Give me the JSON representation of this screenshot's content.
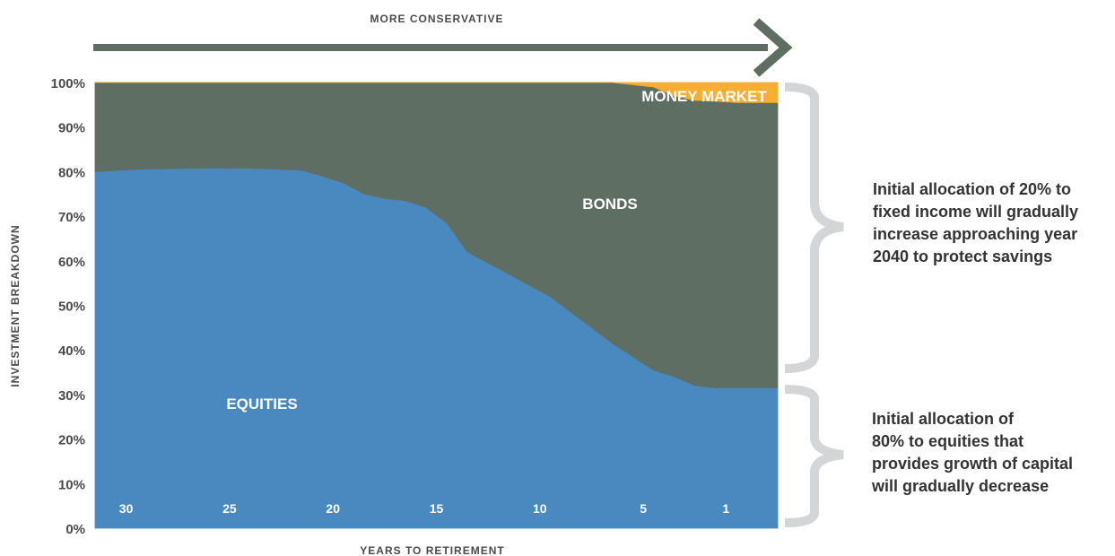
{
  "chart_data": {
    "type": "area",
    "stacked": true,
    "header": "MORE CONSERVATIVE",
    "xlabel": "YEARS TO RETIREMENT",
    "ylabel": "INVESTMENT BREAKDOWN",
    "ylim": [
      0,
      100
    ],
    "yticks": [
      "0%",
      "10%",
      "20%",
      "30%",
      "40%",
      "50%",
      "60%",
      "70%",
      "80%",
      "90%",
      "100%"
    ],
    "xtick_labels": [
      {
        "years": 30,
        "label": "30"
      },
      {
        "years": 25,
        "label": "25"
      },
      {
        "years": 20,
        "label": "20"
      },
      {
        "years": 15,
        "label": "15"
      },
      {
        "years": 10,
        "label": "10"
      },
      {
        "years": 5,
        "label": "5"
      },
      {
        "years": 1,
        "label": "1"
      }
    ],
    "x": [
      31.5,
      29.5,
      27.5,
      25.5,
      23.5,
      21.5,
      20.5,
      19.5,
      18.5,
      17.5,
      16.5,
      15.5,
      14.5,
      13.5,
      12.5,
      11.5,
      10.5,
      9.5,
      8.5,
      7.5,
      6.5,
      5.5,
      4.5,
      3.5,
      2.5,
      1.5,
      0.5,
      -0.5,
      -1.5
    ],
    "series": [
      {
        "name": "EQUITIES",
        "color": "#4a89bf",
        "values": [
          80,
          80.5,
          80.7,
          80.8,
          80.7,
          80.3,
          79,
          77.5,
          75,
          74,
          73.5,
          72,
          68.5,
          62,
          59.5,
          57,
          54.5,
          52,
          48.5,
          45,
          41.5,
          38.5,
          35.5,
          34,
          32,
          31.5,
          31.5,
          31.5,
          31.5
        ]
      },
      {
        "name": "BONDS",
        "color": "#5f6e62",
        "values": [
          20,
          19.5,
          19.3,
          19.2,
          19.3,
          19.7,
          21,
          22.5,
          25,
          26,
          26.5,
          28,
          31.5,
          38,
          40.5,
          43,
          45.5,
          48,
          51.5,
          55,
          58.5,
          61,
          63.5,
          63,
          64,
          64.3,
          64,
          64,
          64
        ]
      },
      {
        "name": "MONEY MARKET",
        "color": "#f8ad33",
        "values": [
          0,
          0,
          0,
          0,
          0,
          0,
          0,
          0,
          0,
          0,
          0,
          0,
          0,
          0,
          0,
          0,
          0,
          0,
          0,
          0,
          0,
          0.5,
          1,
          3,
          4,
          4.2,
          4.5,
          4.5,
          4.5
        ]
      }
    ],
    "annotations": [
      "Initial allocation of 20% to fixed income will gradually increase approaching year 2040 to protect savings",
      "Initial allocation of 80% to equities that provides growth of capital will gradually decrease"
    ]
  },
  "labels": {
    "equities": "EQUITIES",
    "bonds": "BONDS",
    "money_market": "MONEY MARKET"
  },
  "notes": {
    "fixed_income": [
      "Initial allocation of 20% to",
      "fixed income will gradually",
      "increase approaching year",
      "2040 to protect savings"
    ],
    "equities": [
      "Initial allocation of",
      "80% to equities that",
      "provides growth of capital",
      "will gradually decrease"
    ]
  },
  "colors": {
    "arrow": "#5f6e62",
    "brace": "#d4d5d6"
  }
}
